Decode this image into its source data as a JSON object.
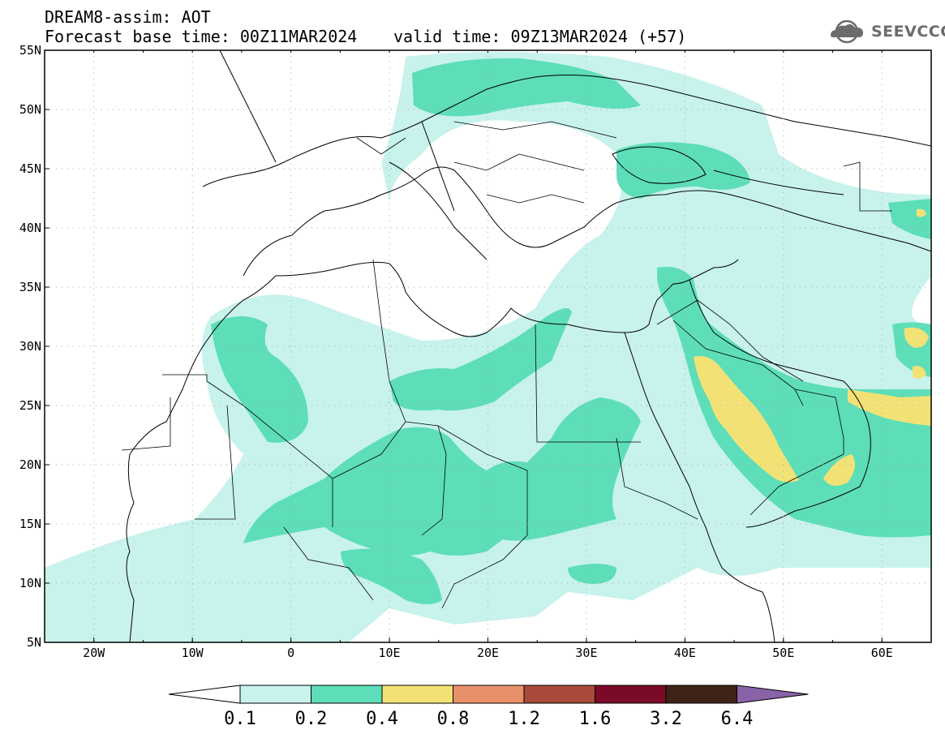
{
  "header": {
    "title": "DREAM8-assim: AOT",
    "base_time": "Forecast base time: 00Z11MAR2024",
    "valid_time": "valid time: 09Z13MAR2024 (+57)",
    "logo_text": "SEEVCCC",
    "logo_icon": "cloud-circle-icon"
  },
  "map": {
    "lon_range": [
      -25,
      65
    ],
    "lat_range": [
      5,
      55
    ],
    "lat_ticks": [
      "55N",
      "50N",
      "45N",
      "40N",
      "35N",
      "30N",
      "25N",
      "20N",
      "15N",
      "10N",
      "5N"
    ],
    "lon_ticks": [
      "20W",
      "10W",
      "0",
      "10E",
      "20E",
      "30E",
      "40E",
      "50E",
      "60E"
    ],
    "gridlines": "dotted"
  },
  "colorbar": {
    "labels": [
      "0.1",
      "0.2",
      "0.4",
      "0.8",
      "1.2",
      "1.6",
      "3.2",
      "6.4"
    ],
    "colors": [
      "#c8f2ec",
      "#5ddeb8",
      "#f2e276",
      "#e8906a",
      "#a94a3a",
      "#7a0a28",
      "#3e2416",
      "#8a62a8"
    ]
  }
}
